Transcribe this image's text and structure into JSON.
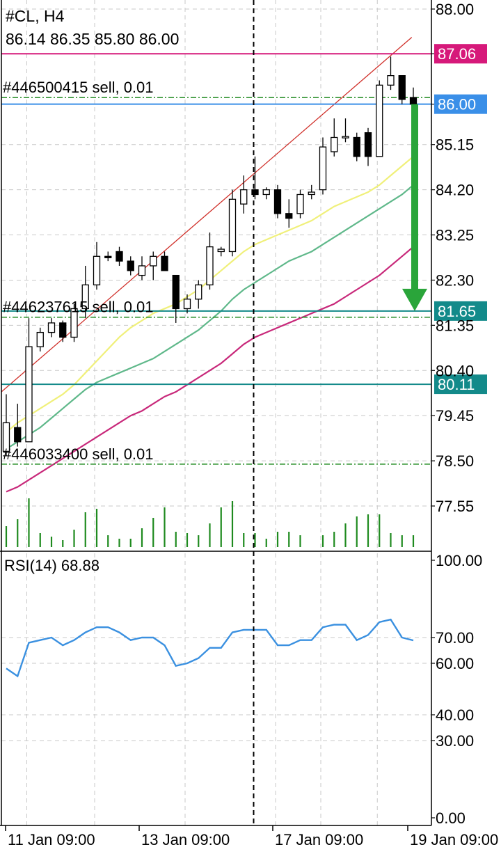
{
  "header": {
    "symbol_timeframe": "#CL, H4",
    "ohlc_values": "86.14 86.35 85.80 86.00"
  },
  "order_labels": [
    {
      "text": "#446500415 sell, 0.01",
      "price": 86.14
    },
    {
      "text": "#446237615 sell, 0.01",
      "price": 81.52
    },
    {
      "text": "#446033400 sell, 0.01",
      "price": 78.43
    }
  ],
  "price_tags": [
    {
      "value": "87.06",
      "price": 87.06,
      "color": "#d6197a"
    },
    {
      "value": "86.00",
      "price": 86.0,
      "color": "#3a8fe8"
    },
    {
      "value": "81.65",
      "price": 81.65,
      "color": "#138a8a"
    },
    {
      "value": "80.11",
      "price": 80.11,
      "color": "#138a8a"
    }
  ],
  "price_axis_labels": [
    "88.00",
    "87.06",
    "86.00",
    "85.15",
    "84.20",
    "83.25",
    "82.30",
    "81.35",
    "80.40",
    "79.45",
    "78.50",
    "77.55"
  ],
  "rsi": {
    "label": "RSI(14) 68.88",
    "axis_labels": [
      "100.00",
      "70.00",
      "60.00",
      "40.00",
      "30.00",
      "0.00"
    ]
  },
  "time_axis_labels": [
    "11 Jan 09:00",
    "13 Jan 09:00",
    "17 Jan 09:00",
    "19 Jan 09:00"
  ],
  "colors": {
    "up_candle": "#ffffff",
    "down_candle": "#000000",
    "ma_fast": "#f0f07a",
    "ma_mid": "#5fb88a",
    "ma_slow": "#c8287a",
    "channel": "#d0302a",
    "volume": "#1f8a1f",
    "rsi_line": "#3a90e0",
    "arrow": "#2aa53a",
    "order_line": "#1f8a1f"
  },
  "chart_data": {
    "type": "candlestick",
    "symbol": "#CL",
    "timeframe": "H4",
    "price_range": [
      77.0,
      88.2
    ],
    "candles": [
      {
        "o": 78.7,
        "h": 79.9,
        "l": 78.6,
        "c": 79.3
      },
      {
        "o": 79.2,
        "h": 79.7,
        "l": 78.8,
        "c": 78.9
      },
      {
        "o": 78.9,
        "h": 81.5,
        "l": 78.9,
        "c": 80.9
      },
      {
        "o": 80.9,
        "h": 81.3,
        "l": 80.8,
        "c": 81.2
      },
      {
        "o": 81.2,
        "h": 81.5,
        "l": 81.1,
        "c": 81.4
      },
      {
        "o": 81.4,
        "h": 81.45,
        "l": 81.0,
        "c": 81.1
      },
      {
        "o": 81.1,
        "h": 81.8,
        "l": 81.0,
        "c": 81.7
      },
      {
        "o": 81.7,
        "h": 82.6,
        "l": 81.5,
        "c": 82.2
      },
      {
        "o": 82.2,
        "h": 83.1,
        "l": 82.1,
        "c": 82.8
      },
      {
        "o": 82.8,
        "h": 82.9,
        "l": 82.7,
        "c": 82.78
      },
      {
        "o": 82.9,
        "h": 83.0,
        "l": 82.6,
        "c": 82.7
      },
      {
        "o": 82.7,
        "h": 82.8,
        "l": 82.4,
        "c": 82.5
      },
      {
        "o": 82.4,
        "h": 82.8,
        "l": 82.3,
        "c": 82.6
      },
      {
        "o": 82.6,
        "h": 82.9,
        "l": 82.3,
        "c": 82.8
      },
      {
        "o": 82.8,
        "h": 82.9,
        "l": 82.5,
        "c": 82.5
      },
      {
        "o": 82.4,
        "h": 82.4,
        "l": 81.4,
        "c": 81.7
      },
      {
        "o": 81.7,
        "h": 82.0,
        "l": 81.6,
        "c": 81.9
      },
      {
        "o": 81.9,
        "h": 82.3,
        "l": 81.7,
        "c": 82.2
      },
      {
        "o": 82.2,
        "h": 83.3,
        "l": 82.1,
        "c": 83.0
      },
      {
        "o": 82.9,
        "h": 83.0,
        "l": 82.8,
        "c": 82.95
      },
      {
        "o": 82.9,
        "h": 84.2,
        "l": 82.8,
        "c": 84.0
      },
      {
        "o": 83.9,
        "h": 84.5,
        "l": 83.7,
        "c": 84.2
      },
      {
        "o": 84.2,
        "h": 84.9,
        "l": 84.0,
        "c": 84.1
      },
      {
        "o": 84.1,
        "h": 84.25,
        "l": 84.0,
        "c": 84.2
      },
      {
        "o": 84.2,
        "h": 84.3,
        "l": 83.6,
        "c": 83.7
      },
      {
        "o": 83.7,
        "h": 84.0,
        "l": 83.4,
        "c": 83.6
      },
      {
        "o": 83.7,
        "h": 84.2,
        "l": 83.6,
        "c": 84.1
      },
      {
        "o": 84.1,
        "h": 84.3,
        "l": 84.0,
        "c": 84.15
      },
      {
        "o": 84.2,
        "h": 85.3,
        "l": 84.1,
        "c": 85.1
      },
      {
        "o": 85.0,
        "h": 85.7,
        "l": 84.9,
        "c": 85.3
      },
      {
        "o": 85.3,
        "h": 85.7,
        "l": 85.2,
        "c": 85.32
      },
      {
        "o": 85.3,
        "h": 85.4,
        "l": 84.8,
        "c": 84.9
      },
      {
        "o": 85.4,
        "h": 85.5,
        "l": 84.7,
        "c": 84.9
      },
      {
        "o": 84.9,
        "h": 86.5,
        "l": 84.9,
        "c": 86.4
      },
      {
        "o": 86.4,
        "h": 87.0,
        "l": 86.3,
        "c": 86.6
      },
      {
        "o": 86.6,
        "h": 86.6,
        "l": 86.0,
        "c": 86.1
      },
      {
        "o": 86.14,
        "h": 86.35,
        "l": 85.8,
        "c": 86.0
      }
    ],
    "ma_fast": [
      79.1,
      79.3,
      79.45,
      79.6,
      79.75,
      79.9,
      80.1,
      80.35,
      80.6,
      80.85,
      81.1,
      81.3,
      81.45,
      81.6,
      81.7,
      81.8,
      81.95,
      82.1,
      82.3,
      82.5,
      82.7,
      82.9,
      83.05,
      83.15,
      83.25,
      83.35,
      83.45,
      83.55,
      83.7,
      83.85,
      83.95,
      84.05,
      84.15,
      84.3,
      84.5,
      84.7,
      84.9
    ],
    "ma_mid": [
      78.75,
      78.9,
      79.05,
      79.2,
      79.4,
      79.6,
      79.8,
      80.0,
      80.15,
      80.25,
      80.35,
      80.45,
      80.55,
      80.65,
      80.8,
      80.95,
      81.1,
      81.25,
      81.45,
      81.65,
      81.9,
      82.1,
      82.25,
      82.4,
      82.55,
      82.7,
      82.8,
      82.9,
      83.05,
      83.2,
      83.35,
      83.5,
      83.65,
      83.8,
      83.95,
      84.1,
      84.3
    ],
    "ma_slow": [
      77.85,
      77.95,
      78.1,
      78.25,
      78.4,
      78.55,
      78.7,
      78.85,
      79.0,
      79.15,
      79.3,
      79.45,
      79.55,
      79.7,
      79.85,
      79.95,
      80.1,
      80.25,
      80.4,
      80.55,
      80.75,
      80.95,
      81.1,
      81.2,
      81.3,
      81.4,
      81.5,
      81.6,
      81.7,
      81.8,
      81.95,
      82.1,
      82.25,
      82.4,
      82.6,
      82.8,
      83.0
    ],
    "volume": [
      30,
      40,
      70,
      20,
      15,
      10,
      25,
      50,
      55,
      17,
      12,
      12,
      27,
      42,
      57,
      22,
      20,
      17,
      34,
      57,
      66,
      20,
      20,
      12,
      22,
      22,
      17,
      0,
      17,
      22,
      34,
      44,
      47,
      47,
      20,
      17,
      17
    ],
    "rsi": [
      58,
      55,
      68,
      69,
      70,
      67,
      69,
      72,
      74,
      74,
      72,
      69,
      70,
      70,
      67,
      59,
      60,
      62,
      66,
      66,
      72,
      73,
      73,
      73,
      67,
      67,
      69,
      69,
      74,
      75,
      75,
      69,
      71,
      76,
      77,
      70,
      68.88
    ],
    "rsi_range": [
      0,
      100
    ],
    "rsi_levels": [
      30,
      40,
      60,
      70
    ],
    "horizontal_levels": [
      87.06,
      86.0,
      81.65,
      80.11
    ],
    "order_levels": [
      86.14,
      81.52,
      78.43
    ],
    "channel_line": {
      "from": {
        "index": 0,
        "price": 79.95
      },
      "to": {
        "index": 35,
        "price": 87.2
      }
    },
    "arrow": {
      "from_price": 86.0,
      "to_price": 81.65,
      "index": 36
    },
    "cursor_index": 22
  }
}
